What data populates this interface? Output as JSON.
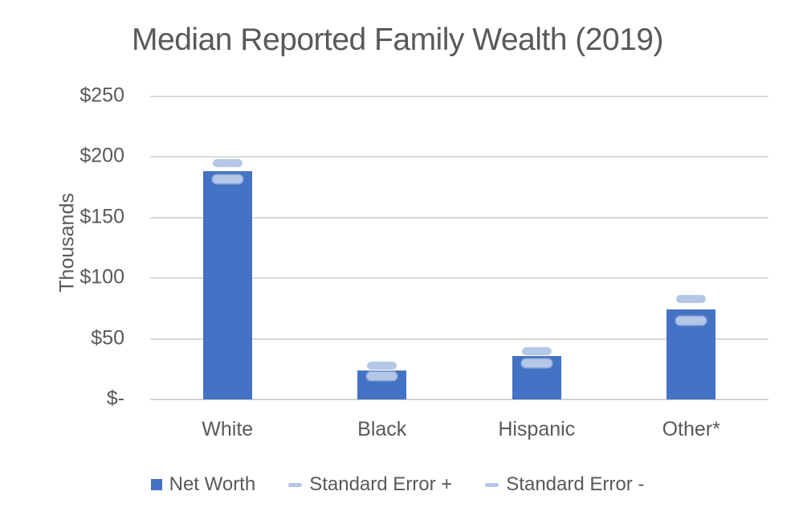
{
  "chart_data": {
    "type": "bar",
    "title": "Median Reported Family Wealth (2019)",
    "xlabel": "",
    "ylabel": "Thousands",
    "categories": [
      "White",
      "Black",
      "Hispanic",
      "Other*"
    ],
    "series": [
      {
        "name": "Net Worth",
        "marker": "bar",
        "color": "#4472C4",
        "values": [
          188,
          24,
          36,
          74
        ]
      },
      {
        "name": "Standard Error +",
        "marker": "dash",
        "color": "#B4C7E7",
        "values": [
          195,
          28,
          40,
          83
        ]
      },
      {
        "name": "Standard Error -",
        "marker": "dash",
        "color": "#B4C7E7",
        "values": [
          182,
          19,
          30,
          65
        ]
      }
    ],
    "ylim": [
      0,
      250
    ],
    "yticks": [
      {
        "value": 0,
        "label": "$-"
      },
      {
        "value": 50,
        "label": "$50"
      },
      {
        "value": 100,
        "label": "$100"
      },
      {
        "value": 150,
        "label": "$150"
      },
      {
        "value": 200,
        "label": "$200"
      },
      {
        "value": 250,
        "label": "$250"
      }
    ],
    "grid": true,
    "legend_position": "bottom",
    "colors": {
      "bar": "#4472C4",
      "error_marker": "#B4C7E7",
      "gridline": "#DBDBDB",
      "text": "#595959",
      "background": "#FFFFFF"
    }
  }
}
